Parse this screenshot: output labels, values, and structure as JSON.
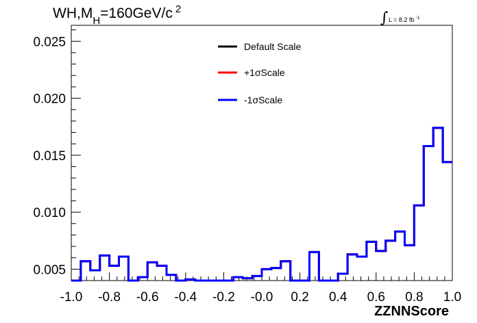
{
  "chart_data": {
    "type": "line",
    "title": "WH,M_H=160GeV/c^2",
    "title_parts": {
      "main": "WH,M",
      "sub": "H",
      "rest": "=160GeV/c",
      "sup": "2"
    },
    "luminosity": {
      "prefix": "L = 8.2 fb",
      "sup": "-1"
    },
    "xlabel": "ZZNNScore",
    "ylabel": "",
    "xlim": [
      -1.0,
      1.0
    ],
    "ylim": [
      0.004,
      0.0264
    ],
    "x_ticks": [
      "-1.0",
      "-0.8",
      "-0.6",
      "-0.4",
      "-0.2",
      "-0.0",
      "0.2",
      "0.4",
      "0.6",
      "0.8",
      "1.0"
    ],
    "y_ticks": [
      "0.005",
      "0.010",
      "0.015",
      "0.020",
      "0.025"
    ],
    "legend": [
      {
        "name": "Default Scale",
        "color": "#000000"
      },
      {
        "name": "+1σScale",
        "color": "#ff0000"
      },
      {
        "name": "-1σScale",
        "color": "#0000ff"
      }
    ],
    "bin_edges": [
      -1.0,
      -0.95,
      -0.9,
      -0.85,
      -0.8,
      -0.75,
      -0.7,
      -0.65,
      -0.6,
      -0.55,
      -0.5,
      -0.45,
      -0.4,
      -0.35,
      -0.3,
      -0.25,
      -0.2,
      -0.15,
      -0.1,
      -0.05,
      0.0,
      0.05,
      0.1,
      0.15,
      0.2,
      0.25,
      0.3,
      0.35,
      0.4,
      0.45,
      0.5,
      0.55,
      0.6,
      0.65,
      0.7,
      0.75,
      0.8,
      0.85,
      0.9,
      0.95,
      1.0
    ],
    "series": [
      {
        "name": "Default Scale",
        "color": "#000000",
        "values": [
          0.004,
          0.0057,
          0.0049,
          0.0062,
          0.0053,
          0.0061,
          0.004,
          0.0043,
          0.0056,
          0.0053,
          0.0045,
          0.004,
          0.0041,
          0.004,
          0.004,
          0.004,
          0.004,
          0.0043,
          0.0042,
          0.0044,
          0.005,
          0.0051,
          0.0057,
          0.004,
          0.004,
          0.0065,
          0.004,
          0.004,
          0.0046,
          0.0063,
          0.0061,
          0.0074,
          0.0066,
          0.0075,
          0.0083,
          0.0071,
          0.0106,
          0.0158,
          0.0174,
          0.0144
        ]
      },
      {
        "name": "+1σScale",
        "color": "#ff0000",
        "values": [
          0.004,
          0.0057,
          0.0049,
          0.0062,
          0.0053,
          0.0061,
          0.004,
          0.0043,
          0.0056,
          0.0053,
          0.0045,
          0.004,
          0.0041,
          0.004,
          0.004,
          0.004,
          0.004,
          0.0043,
          0.0042,
          0.0044,
          0.005,
          0.0051,
          0.0057,
          0.004,
          0.004,
          0.0065,
          0.004,
          0.004,
          0.0046,
          0.0063,
          0.0061,
          0.0074,
          0.0066,
          0.0075,
          0.0083,
          0.0071,
          0.0106,
          0.0158,
          0.0174,
          0.0144
        ]
      },
      {
        "name": "-1σScale",
        "color": "#0000ff",
        "values": [
          0.004,
          0.0057,
          0.0049,
          0.0062,
          0.0053,
          0.0061,
          0.004,
          0.0043,
          0.0056,
          0.0053,
          0.0045,
          0.004,
          0.0041,
          0.004,
          0.004,
          0.004,
          0.004,
          0.0043,
          0.0042,
          0.0044,
          0.005,
          0.0051,
          0.0057,
          0.004,
          0.004,
          0.0065,
          0.004,
          0.004,
          0.0046,
          0.0063,
          0.0061,
          0.0074,
          0.0066,
          0.0075,
          0.0083,
          0.0071,
          0.0106,
          0.0158,
          0.0174,
          0.0144
        ]
      }
    ],
    "grid": false,
    "legend_position": "top-center"
  }
}
